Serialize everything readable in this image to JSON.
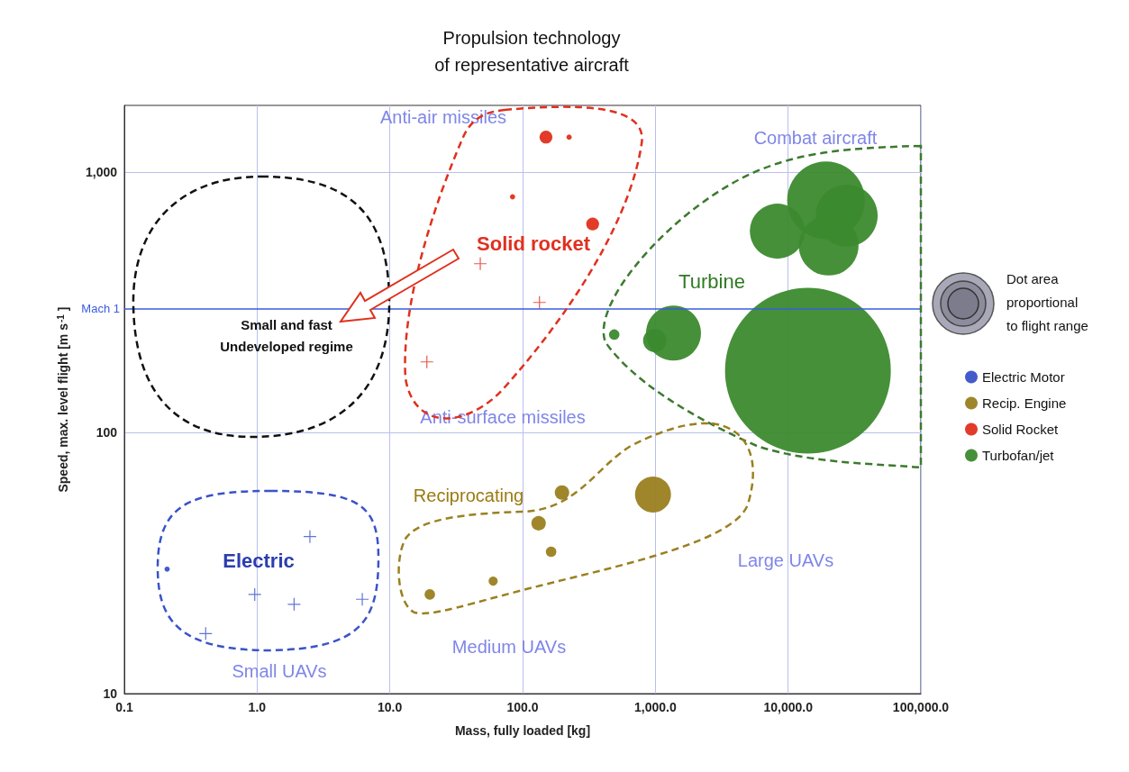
{
  "chart_data": {
    "type": "bubble",
    "title": "Propulsion technology\nof representative aircraft",
    "xlabel": "Mass, fully loaded [kg]",
    "ylabel": "Speed, max. level flight [m s$^{-1}$]",
    "xlim": [
      0.1,
      100000
    ],
    "ylim": [
      10,
      1800
    ],
    "log": "xy",
    "xticks": [
      {
        "value": 0.1,
        "label": "0.1"
      },
      {
        "value": 1,
        "label": "1.0"
      },
      {
        "value": 10,
        "label": "10.0"
      },
      {
        "value": 100,
        "label": "100.0"
      },
      {
        "value": 1000,
        "label": "1,000.0"
      },
      {
        "value": 10000,
        "label": "10,000.0"
      },
      {
        "value": 100000,
        "label": "100,000.0"
      }
    ],
    "yticks": [
      10,
      100,
      {
        "value": 1000,
        "label": "1,000"
      }
    ],
    "grid": true,
    "legend": "right",
    "series": [
      {
        "name": "Electric Motor",
        "color": "#3a53c8",
        "x": [
          0.21
        ],
        "values": [
          30
        ],
        "sizes": [
          0.001
        ]
      },
      {
        "name": "Recip. Engine",
        "color": "#9a8020",
        "x": [
          198,
          960,
          132,
          164,
          60,
          20
        ],
        "values": [
          59,
          58,
          45,
          35,
          27,
          24
        ],
        "sizes": [
          0.0076,
          0.047,
          0.0076,
          0.004,
          0.003,
          0.004
        ]
      },
      {
        "name": "Solid Rocket",
        "color": "#e0301e",
        "x": [
          150,
          224,
          84,
          337
        ],
        "values": [
          1360,
          1360,
          803,
          632
        ],
        "sizes": [
          0.006,
          0.001,
          0.001,
          0.006
        ]
      },
      {
        "name": "Turbofan/jet",
        "color": "#3c8a2e",
        "x": [
          14100,
          8300,
          19300,
          27600,
          20200,
          1370,
          990,
          490
        ],
        "values": [
          173,
          593,
          778,
          680,
          522,
          241,
          226,
          238
        ],
        "sizes": [
          1,
          0.11,
          0.22,
          0.14,
          0.13,
          0.11,
          0.02,
          0.004
        ]
      },
      {
        "type": "scatter",
        "marker": "cross",
        "color": "#3a53c8",
        "x": [
          2.5,
          0.96,
          1.9,
          6.2,
          0.41
        ],
        "values": [
          40,
          24,
          22,
          23,
          17
        ]
      },
      {
        "type": "scatter",
        "marker": "cross",
        "color": "#e0301e",
        "x": [
          48,
          134,
          19
        ],
        "values": [
          445,
          316,
          187
        ]
      }
    ],
    "ref_lines": [
      {
        "axis": "y",
        "value": 300,
        "label": "Mach 1",
        "color": "#3a5be0"
      }
    ],
    "annotations": [
      "Anti-air missiles",
      "Combat aircraft",
      "Solid rocket",
      "Turbine",
      "Small and fast\nUndeveloped regime",
      "Anti-surface missiles",
      "Reciprocating",
      "Electric",
      "Large UAVs",
      "Medium UAVs",
      "Small UAVs",
      "Dot area\nproportional\nto flight range"
    ]
  }
}
